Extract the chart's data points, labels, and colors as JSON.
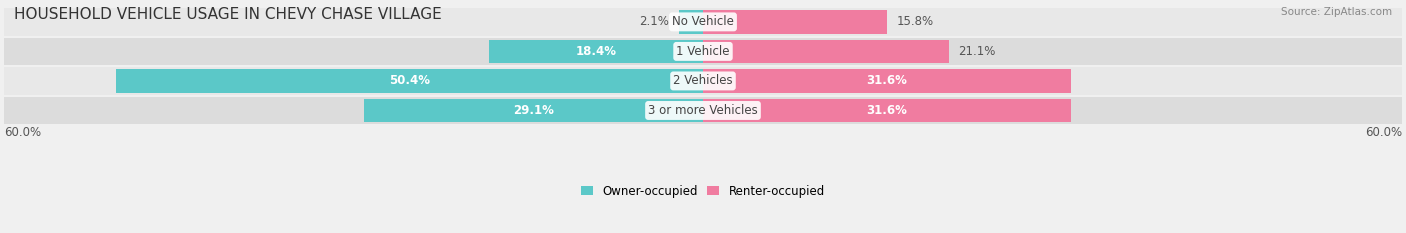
{
  "title": "HOUSEHOLD VEHICLE USAGE IN CHEVY CHASE VILLAGE",
  "source": "Source: ZipAtlas.com",
  "categories": [
    "No Vehicle",
    "1 Vehicle",
    "2 Vehicles",
    "3 or more Vehicles"
  ],
  "owner_values": [
    2.1,
    18.4,
    50.4,
    29.1
  ],
  "renter_values": [
    15.8,
    21.1,
    31.6,
    31.6
  ],
  "owner_color": "#5bc8c8",
  "renter_color": "#f07ca0",
  "label_color_dark": "#555555",
  "label_color_light": "#ffffff",
  "background_color": "#f0f0f0",
  "row_bg_even": "#e8e8e8",
  "row_bg_odd": "#dcdcdc",
  "max_val": 60.0,
  "axis_label_left": "60.0%",
  "axis_label_right": "60.0%",
  "legend_owner": "Owner-occupied",
  "legend_renter": "Renter-occupied",
  "title_fontsize": 11,
  "bar_label_fontsize": 8.5,
  "category_fontsize": 8.5,
  "axis_fontsize": 8.5,
  "source_fontsize": 7.5,
  "category_text_color": "#444444"
}
